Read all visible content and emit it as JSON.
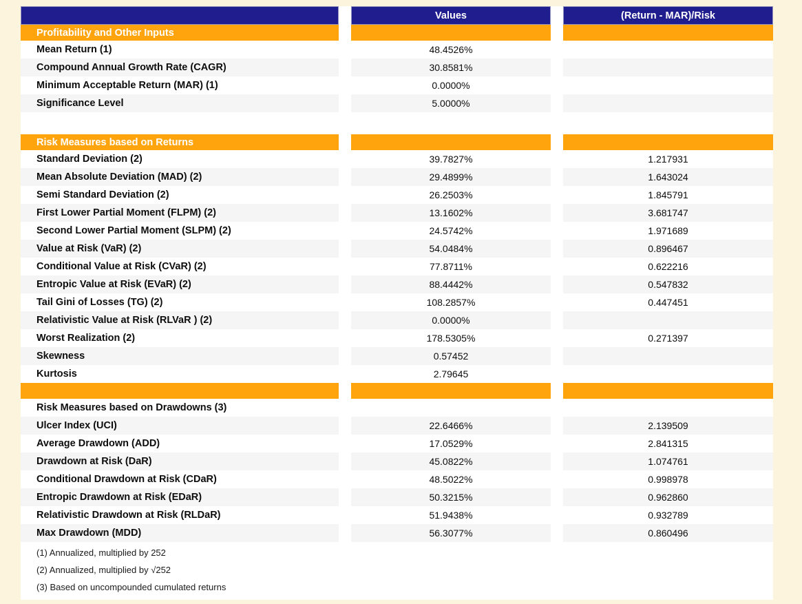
{
  "colors": {
    "page_background": "#FDF4DE",
    "table_background": "#FFFFFF",
    "header_background": "#201D8E",
    "header_text": "#FFFFFF",
    "section_background": "#FFA40D",
    "section_text": "#FFFFFF",
    "stripe_background": "#F5F5F5",
    "body_text": "#0d0d0d"
  },
  "chart_data": {
    "type": "table",
    "columns": [
      "",
      "Values",
      "(Return - MAR)/Risk"
    ],
    "sections": [
      {
        "title": "Profitability and Other Inputs",
        "rows": [
          {
            "label": "Mean Return (1)",
            "value": "48.4526%",
            "ratio": ""
          },
          {
            "label": "Compound Annual Growth Rate (CAGR)",
            "value": "30.8581%",
            "ratio": ""
          },
          {
            "label": "Minimum Acceptable Return (MAR) (1)",
            "value": "0.0000%",
            "ratio": ""
          },
          {
            "label": "Significance Level",
            "value": "5.0000%",
            "ratio": ""
          }
        ]
      },
      {
        "title": "Risk Measures based on Returns",
        "rows": [
          {
            "label": "Standard Deviation (2)",
            "value": "39.7827%",
            "ratio": "1.217931"
          },
          {
            "label": "Mean Absolute Deviation (MAD) (2)",
            "value": "29.4899%",
            "ratio": "1.643024"
          },
          {
            "label": "Semi Standard Deviation (2)",
            "value": "26.2503%",
            "ratio": "1.845791"
          },
          {
            "label": "First Lower Partial Moment (FLPM) (2)",
            "value": "13.1602%",
            "ratio": "3.681747"
          },
          {
            "label": "Second Lower Partial Moment (SLPM) (2)",
            "value": "24.5742%",
            "ratio": "1.971689"
          },
          {
            "label": "Value at Risk (VaR) (2)",
            "value": "54.0484%",
            "ratio": "0.896467"
          },
          {
            "label": "Conditional Value at Risk (CVaR) (2)",
            "value": "77.8711%",
            "ratio": "0.622216"
          },
          {
            "label": "Entropic Value at Risk (EVaR) (2)",
            "value": "88.4442%",
            "ratio": "0.547832"
          },
          {
            "label": "Tail Gini of Losses (TG) (2)",
            "value": "108.2857%",
            "ratio": "0.447451"
          },
          {
            "label": "Relativistic Value at Risk (RLVaR ) (2)",
            "value": "0.0000%",
            "ratio": ""
          },
          {
            "label": "Worst Realization (2)",
            "value": "178.5305%",
            "ratio": "0.271397"
          },
          {
            "label": "Skewness",
            "value": "0.57452",
            "ratio": ""
          },
          {
            "label": "Kurtosis",
            "value": "2.79645",
            "ratio": ""
          }
        ]
      },
      {
        "title": "",
        "rows": [
          {
            "label": "Risk Measures based on Drawdowns (3)",
            "value": "",
            "ratio": ""
          },
          {
            "label": "Ulcer Index (UCI)",
            "value": "22.6466%",
            "ratio": "2.139509"
          },
          {
            "label": "Average Drawdown (ADD)",
            "value": "17.0529%",
            "ratio": "2.841315"
          },
          {
            "label": "Drawdown at Risk (DaR)",
            "value": "45.0822%",
            "ratio": "1.074761"
          },
          {
            "label": "Conditional Drawdown at Risk (CDaR)",
            "value": "48.5022%",
            "ratio": "0.998978"
          },
          {
            "label": "Entropic Drawdown at Risk (EDaR)",
            "value": "50.3215%",
            "ratio": "0.962860"
          },
          {
            "label": "Relativistic Drawdown at Risk (RLDaR)",
            "value": "51.9438%",
            "ratio": "0.932789"
          },
          {
            "label": "Max Drawdown (MDD)",
            "value": "56.3077%",
            "ratio": "0.860496"
          }
        ]
      }
    ],
    "footnotes": [
      "(1) Annualized, multiplied by 252",
      "(2) Annualized, multiplied by √252",
      "(3) Based on uncompounded cumulated returns"
    ]
  }
}
